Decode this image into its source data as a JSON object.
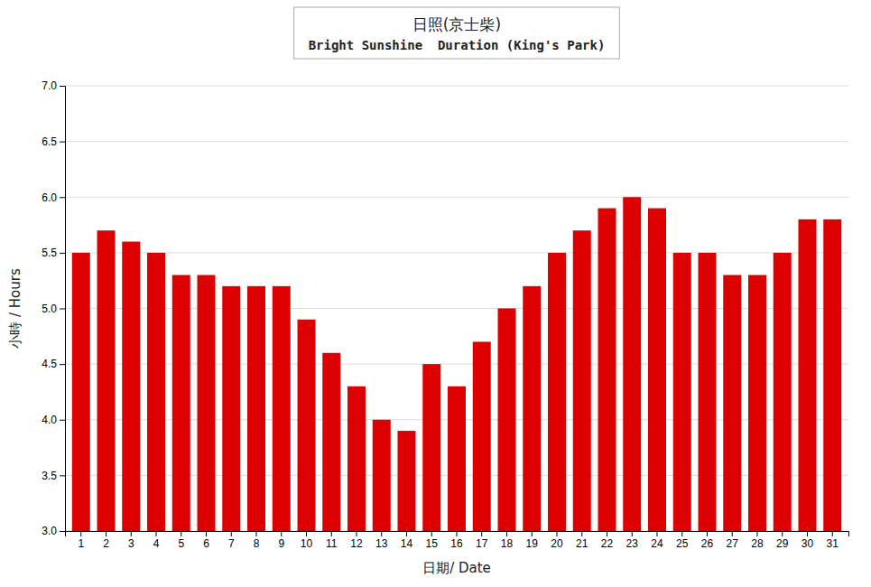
{
  "chart_data": {
    "type": "bar",
    "categories": [
      "1",
      "2",
      "3",
      "4",
      "5",
      "6",
      "7",
      "8",
      "9",
      "10",
      "11",
      "12",
      "13",
      "14",
      "15",
      "16",
      "17",
      "18",
      "19",
      "20",
      "21",
      "22",
      "23",
      "24",
      "25",
      "26",
      "27",
      "28",
      "29",
      "30",
      "31"
    ],
    "values": [
      5.5,
      5.7,
      5.6,
      5.5,
      5.3,
      5.3,
      5.2,
      5.2,
      5.2,
      4.9,
      4.6,
      4.3,
      4.0,
      3.9,
      4.5,
      4.3,
      4.7,
      5.0,
      5.2,
      5.5,
      5.7,
      5.9,
      6.0,
      5.9,
      5.5,
      5.5,
      5.3,
      5.3,
      5.5,
      5.8,
      5.8
    ],
    "color": "#dd0000",
    "xlabel": "日期/ Date",
    "ylabel": "小時 / Hours",
    "annotations": [
      "日照(京士柴)",
      "Bright Sunshine  Duration (King's Park)"
    ],
    "ylim": [
      3.0,
      7.0
    ],
    "yticks": [
      {
        "value": 3,
        "label": "3.0"
      },
      3.5,
      {
        "value": 4,
        "label": "4.0"
      },
      4.5,
      {
        "value": 5,
        "label": "5.0"
      },
      5.5,
      {
        "value": 6,
        "label": "6.0"
      },
      6.5,
      {
        "value": 7,
        "label": "7.0"
      }
    ],
    "grid": true
  }
}
